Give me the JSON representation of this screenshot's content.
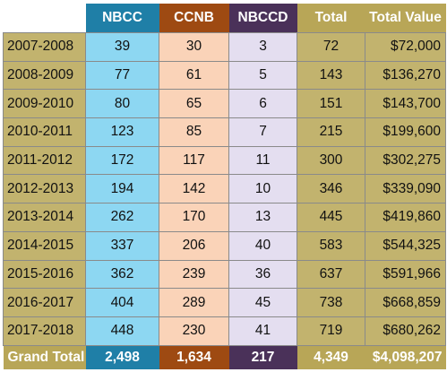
{
  "header": {
    "year": "",
    "nbcc": "NBCC",
    "ccnb": "CCNB",
    "nbccd": "NBCCD",
    "total": "Total",
    "total_value": "Total Value"
  },
  "colors": {
    "nbcc_header": "#1f7fa7",
    "ccnb_header": "#9e4a12",
    "nbccd_header": "#4a3159",
    "total_header": "#b8a657",
    "nbcc_cell": "#8dd7f2",
    "ccnb_cell": "#fad3b8",
    "nbccd_cell": "#e4def0",
    "year_total_cell": "#c2b36e"
  },
  "rows": [
    {
      "year": "2007-2008",
      "nbcc": "39",
      "ccnb": "30",
      "nbccd": "3",
      "total": "72",
      "value": "$72,000"
    },
    {
      "year": "2008-2009",
      "nbcc": "77",
      "ccnb": "61",
      "nbccd": "5",
      "total": "143",
      "value": "$136,270"
    },
    {
      "year": "2009-2010",
      "nbcc": "80",
      "ccnb": "65",
      "nbccd": "6",
      "total": "151",
      "value": "$143,700"
    },
    {
      "year": "2010-2011",
      "nbcc": "123",
      "ccnb": "85",
      "nbccd": "7",
      "total": "215",
      "value": "$199,600"
    },
    {
      "year": "2011-2012",
      "nbcc": "172",
      "ccnb": "117",
      "nbccd": "11",
      "total": "300",
      "value": "$302,275"
    },
    {
      "year": "2012-2013",
      "nbcc": "194",
      "ccnb": "142",
      "nbccd": "10",
      "total": "346",
      "value": "$339,090"
    },
    {
      "year": "2013-2014",
      "nbcc": "262",
      "ccnb": "170",
      "nbccd": "13",
      "total": "445",
      "value": "$419,860"
    },
    {
      "year": "2014-2015",
      "nbcc": "337",
      "ccnb": "206",
      "nbccd": "40",
      "total": "583",
      "value": "$544,325"
    },
    {
      "year": "2015-2016",
      "nbcc": "362",
      "ccnb": "239",
      "nbccd": "36",
      "total": "637",
      "value": "$591,966"
    },
    {
      "year": "2016-2017",
      "nbcc": "404",
      "ccnb": "289",
      "nbccd": "45",
      "total": "738",
      "value": "$668,859"
    },
    {
      "year": "2017-2018",
      "nbcc": "448",
      "ccnb": "230",
      "nbccd": "41",
      "total": "719",
      "value": "$680,262"
    }
  ],
  "grand_total": {
    "label": "Grand Total",
    "nbcc": "2,498",
    "ccnb": "1,634",
    "nbccd": "217",
    "total": "4,349",
    "value": "$4,098,207"
  }
}
